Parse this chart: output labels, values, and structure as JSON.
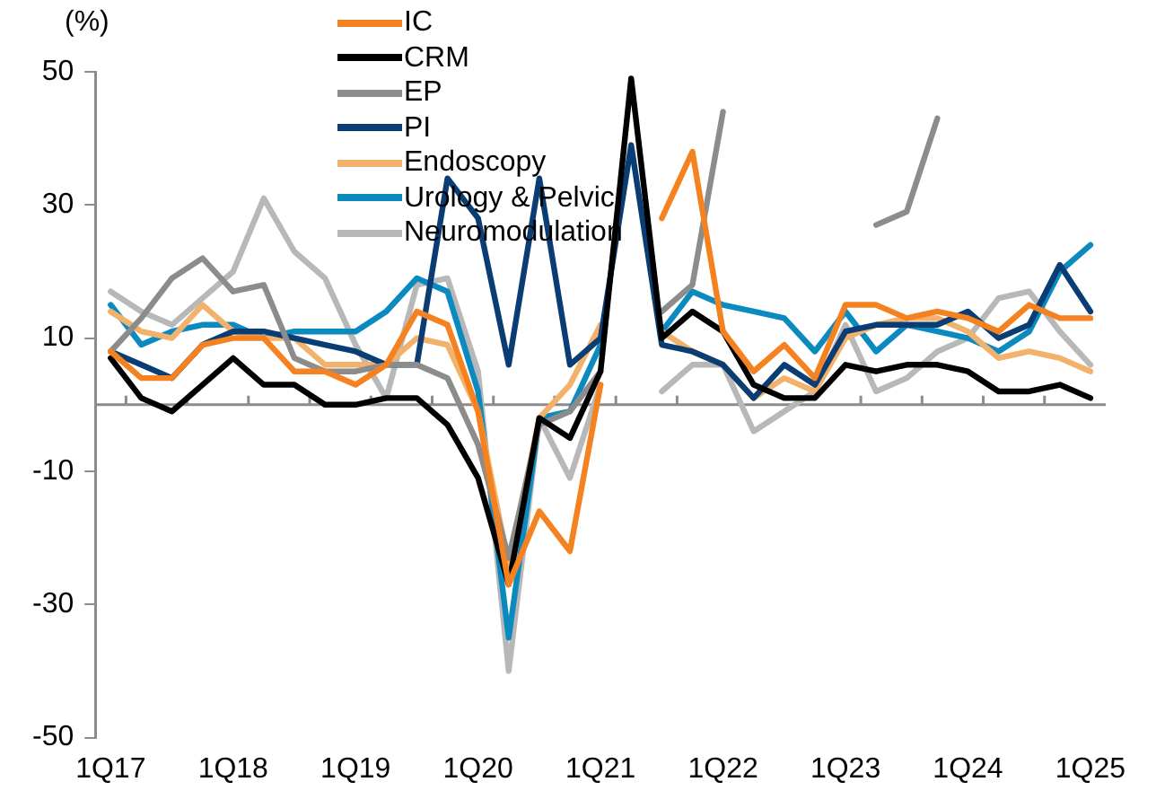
{
  "chart_data": {
    "type": "line",
    "ylabel": "(%)",
    "categories": [
      "1Q17",
      null,
      null,
      null,
      "1Q18",
      null,
      null,
      null,
      "1Q19",
      null,
      null,
      null,
      "1Q20",
      null,
      null,
      null,
      "1Q21",
      null,
      null,
      null,
      "1Q22",
      null,
      null,
      null,
      "1Q23",
      null,
      null,
      null,
      "1Q24",
      null,
      null,
      null,
      "1Q25"
    ],
    "series": [
      {
        "name": "IC",
        "color": "#f58220",
        "values": [
          8,
          4,
          4,
          9,
          10,
          10,
          5,
          5,
          3,
          6,
          14,
          12,
          -1,
          -27,
          -16,
          -22,
          3,
          null,
          28,
          38,
          11,
          5,
          9,
          4,
          15,
          15,
          13,
          14,
          13,
          11,
          15,
          13,
          13
        ]
      },
      {
        "name": "CRM",
        "color": "#000000",
        "values": [
          7,
          1,
          -1,
          3,
          7,
          3,
          3,
          0,
          0,
          1,
          1,
          -3,
          -11,
          -27,
          -2,
          -5,
          5,
          49,
          10,
          14,
          11,
          3,
          1,
          1,
          6,
          5,
          6,
          6,
          5,
          2,
          2,
          3,
          1
        ]
      },
      {
        "name": "EP",
        "color": "#8c8c8c",
        "values": [
          8,
          13,
          19,
          22,
          17,
          18,
          7,
          5,
          5,
          6,
          6,
          4,
          -6,
          -23,
          -3,
          -1,
          5,
          null,
          14,
          18,
          44,
          null,
          null,
          null,
          null,
          27,
          29,
          43,
          null,
          null,
          null,
          null,
          null
        ]
      },
      {
        "name": "PI",
        "color": "#0b3d75",
        "values": [
          8,
          6,
          4,
          9,
          11,
          11,
          10,
          9,
          8,
          6,
          6,
          34,
          28,
          6,
          34,
          6,
          10,
          39,
          9,
          8,
          6,
          1,
          6,
          3,
          11,
          12,
          12,
          12,
          14,
          10,
          12,
          21,
          14
        ]
      },
      {
        "name": "Endoscopy",
        "color": "#f2b26b",
        "values": [
          14,
          11,
          10,
          15,
          11,
          10,
          10,
          6,
          6,
          6,
          10,
          9,
          -1,
          -24,
          -2,
          3,
          12,
          null,
          11,
          8,
          6,
          1,
          4,
          2,
          10,
          12,
          13,
          13,
          11,
          7,
          8,
          7,
          5
        ]
      },
      {
        "name": "Urology & Pelvic",
        "color": "#0a8abf",
        "values": [
          15,
          9,
          11,
          12,
          12,
          10,
          11,
          11,
          11,
          14,
          19,
          17,
          2,
          -35,
          -2,
          -1,
          9,
          null,
          11,
          17,
          15,
          14,
          13,
          8,
          14,
          8,
          12,
          11,
          10,
          8,
          11,
          20,
          24
        ]
      },
      {
        "name": "Neuromodulation",
        "color": "#b8b8b8",
        "values": [
          17,
          14,
          12,
          16,
          20,
          31,
          23,
          19,
          9,
          1,
          18,
          19,
          5,
          -40,
          -2,
          -11,
          3,
          null,
          2,
          6,
          6,
          -4,
          -1,
          2,
          12,
          2,
          4,
          8,
          10,
          16,
          17,
          11,
          6
        ]
      }
    ],
    "ylim": [
      -50,
      50
    ],
    "yticks": [
      -50,
      -30,
      -10,
      10,
      30,
      50
    ],
    "ref_lines": [
      {
        "axis": "y",
        "value": 0,
        "color": "#8c8c8c"
      }
    ],
    "grid": false,
    "legend": "top",
    "marker": "none",
    "line_style": "solid"
  }
}
